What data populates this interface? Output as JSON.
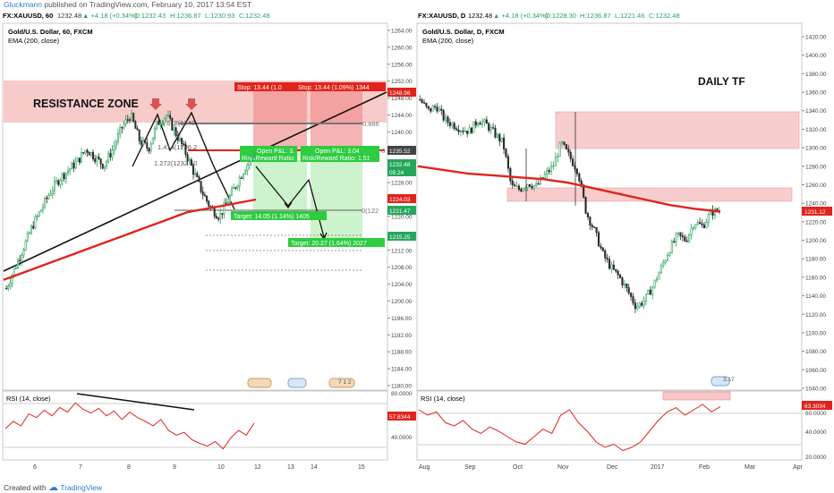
{
  "header": {
    "author": "Gluckmann",
    "published_text": "published on TradingView.com, February 10, 2017 13:54 EST"
  },
  "left_quote": {
    "symbol": "FX:XAUUSD, 60",
    "last": "1232.48",
    "change": "▲ +4.18 (+0.34%)",
    "o": "O:1232.43",
    "h": "H:1236.87",
    "l": "L:1230.93",
    "c": "C:1232.48"
  },
  "right_quote": {
    "symbol": "FX:XAUUSD, D",
    "last": "1232.48",
    "change": "▲ +4.18 (+0.34%)",
    "o": "O:1228.30",
    "h": "H:1236.87",
    "l": "L:1221.46",
    "c": "C:1232.48"
  },
  "left_panel": {
    "title": "Gold/U.S. Dollar, 60, FXCM",
    "indicator": "EMA (200, close)",
    "resistance_label": "RESISTANCE ZONE",
    "stop1": "Stop: 13.44 (1.0",
    "stop2": "Stop: 13.44 (1.09%) 1344",
    "openpl1": "Open P&L: 3.",
    "rr1": "Risk/Reward Ratio: 1",
    "openpl2": "Open P&L: 3.04",
    "rr2": "Risk/Reward Ratio: 1.51",
    "target1": "Target: 14.05 (1.14%) 1405",
    "target2": "Target: 20.27 (1.64%) 2027",
    "fib_0886": "0.886",
    "fib_1414": "1.414(1236.2",
    "fib_1272": "1.272(1232.40",
    "fib_1618": "1.618(1240.",
    "fib_0": "0(122",
    "fib_8": "8",
    "events": [
      "2",
      "7 1 2"
    ],
    "rsi_label": "RSI (14, close)",
    "rsi_value": "57.8344",
    "x_labels": [
      "6",
      "7",
      "8",
      "9",
      "10",
      "12",
      "13",
      "14",
      "15"
    ],
    "y_labels": [
      "1264.00",
      "1260.00",
      "1256.00",
      "1252.00",
      "1248.00",
      "1244.00",
      "1240.00",
      "1236.00",
      "1232.00",
      "1228.00",
      "1224.00",
      "1220.00",
      "1216.00",
      "1212.00",
      "1208.00",
      "1204.00",
      "1200.00",
      "1196.00",
      "1192.00",
      "1188.00",
      "1184.00",
      "1180.00"
    ],
    "price_tags": [
      {
        "value": "1248.96",
        "color": "#e0241c"
      },
      {
        "value": "1235.52",
        "color": "#444444"
      },
      {
        "value": "1232.48",
        "color": "#26a65b"
      },
      {
        "value": "05:24",
        "color": "#26a65b"
      },
      {
        "value": "1224.03",
        "color": "#e0241c"
      },
      {
        "value": "1221.47",
        "color": "#26a65b"
      },
      {
        "value": "1215.25",
        "color": "#26a65b"
      }
    ],
    "rsi_y_labels": [
      "80.0000",
      "40.0000"
    ]
  },
  "right_panel": {
    "title": "Gold/U.S. Dollar, D, FXCM",
    "indicator": "EMA (200, close)",
    "tf_label": "DAILY TF",
    "event_label": "3.17",
    "rsi_label": "RSI (14, close)",
    "rsi_value": "63.3034",
    "price_tag": "1231.12",
    "x_labels": [
      "Aug",
      "Sep",
      "Oct",
      "Nov",
      "Dec",
      "2017",
      "Feb",
      "Mar",
      "Apr"
    ],
    "y_labels": [
      "1420.00",
      "1400.00",
      "1380.00",
      "1360.00",
      "1340.00",
      "1320.00",
      "1300.00",
      "1280.00",
      "1260.00",
      "1240.00",
      "1220.00",
      "1200.00",
      "1180.00",
      "1160.00",
      "1140.00",
      "1120.00",
      "1100.00",
      "1080.00",
      "1060.00",
      "1040.00"
    ],
    "rsi_y_labels": [
      "60.0000",
      "40.0000",
      "20.0000"
    ]
  },
  "footer": {
    "created_with": "Created with",
    "brand": "TradingView"
  },
  "chart_data": [
    {
      "type": "candlestick",
      "title": "Gold/U.S. Dollar, 60, FXCM",
      "ylim": [
        1178,
        1266
      ],
      "x_ticks": [
        "6",
        "7",
        "8",
        "9",
        "10",
        "12",
        "13",
        "14",
        "15"
      ],
      "close_path": [
        1203,
        1208,
        1213,
        1218,
        1222,
        1226,
        1229,
        1231,
        1233,
        1236,
        1234,
        1232,
        1236,
        1241,
        1244,
        1238,
        1236,
        1242,
        1244,
        1240,
        1236,
        1231,
        1226,
        1222,
        1220,
        1224,
        1228,
        1232,
        1235
      ],
      "ema200": [
        1205,
        1207,
        1209,
        1211,
        1213,
        1215,
        1217,
        1219,
        1221,
        1222,
        1223,
        1224
      ],
      "resistance_zone": [
        1242.5,
        1252
      ],
      "stop_level": 1248.96,
      "entry_level": 1235.52,
      "target_levels": [
        1221.47,
        1215.25
      ],
      "rsi": {
        "label": "RSI (14, close)",
        "last": 57.8344,
        "ylim": [
          20,
          90
        ],
        "values": [
          52,
          60,
          55,
          68,
          64,
          72,
          66,
          75,
          70,
          80,
          73,
          69,
          74,
          66,
          71,
          62,
          70,
          64,
          60,
          55,
          62,
          50,
          45,
          48,
          40,
          36,
          33,
          38,
          30,
          42,
          50,
          45,
          58
        ]
      }
    },
    {
      "type": "candlestick",
      "title": "Gold/U.S. Dollar, D, FXCM",
      "ylim": [
        1030,
        1430
      ],
      "x_ticks": [
        "Aug",
        "Sep",
        "Oct",
        "Nov",
        "Dec",
        "2017",
        "Feb",
        "Mar",
        "Apr"
      ],
      "close_path": [
        1352,
        1340,
        1345,
        1330,
        1325,
        1320,
        1318,
        1330,
        1325,
        1315,
        1305,
        1258,
        1255,
        1262,
        1258,
        1270,
        1280,
        1305,
        1290,
        1275,
        1230,
        1210,
        1185,
        1170,
        1160,
        1145,
        1128,
        1135,
        1150,
        1170,
        1190,
        1205,
        1200,
        1220,
        1215,
        1230,
        1232
      ],
      "ema200": [
        1280,
        1276,
        1272,
        1270,
        1268,
        1266,
        1262,
        1256,
        1250,
        1244,
        1238,
        1234,
        1231
      ],
      "zones": [
        [
          1298,
          1340
        ],
        [
          1240,
          1255
        ]
      ],
      "rsi": {
        "label": "RSI (14, close)",
        "last": 63.3034,
        "ylim": [
          15,
          75
        ],
        "values": [
          60,
          55,
          58,
          48,
          45,
          50,
          42,
          38,
          44,
          40,
          35,
          30,
          28,
          35,
          42,
          38,
          55,
          60,
          48,
          40,
          30,
          25,
          28,
          22,
          25,
          30,
          40,
          50,
          58,
          62,
          55,
          60,
          65,
          58,
          63
        ]
      }
    }
  ]
}
